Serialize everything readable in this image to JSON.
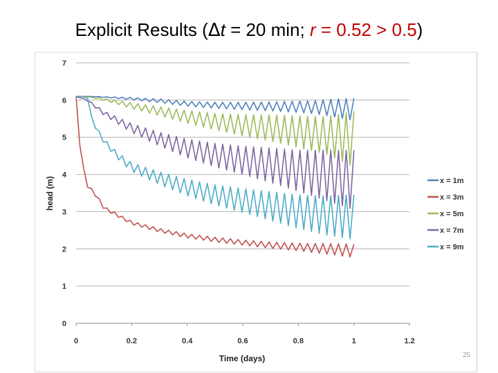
{
  "title": {
    "prefix": "Explicit Results (",
    "delta": "Δ",
    "t": "t",
    "mid": " = 20 min; ",
    "r_label": "r",
    "r_value": " = 0.52 > 0.5",
    "suffix": ")"
  },
  "slide_number": "25",
  "chart_data": {
    "type": "line",
    "title": "",
    "xlabel": "Time (days)",
    "ylabel": "head (m)",
    "xlim": [
      0,
      1.2
    ],
    "ylim": [
      0,
      7
    ],
    "x_ticks": [
      "0",
      "0.2",
      "0.4",
      "0.6",
      "0.8",
      "1",
      "1.2"
    ],
    "y_ticks": [
      "0",
      "1",
      "2",
      "3",
      "4",
      "5",
      "6",
      "7"
    ],
    "grid": "horizontal",
    "legend_position": "right",
    "time_step_days": 0.01389,
    "series": [
      {
        "name": "x = 1m",
        "color": "#4f81bd",
        "start": 6.1,
        "trend": [
          [
            0,
            6.1
          ],
          [
            0.05,
            6.1
          ],
          [
            0.1,
            6.08
          ],
          [
            0.2,
            6.04
          ],
          [
            0.3,
            5.98
          ],
          [
            0.4,
            5.9
          ],
          [
            0.5,
            5.86
          ],
          [
            0.6,
            5.84
          ],
          [
            0.7,
            5.83
          ],
          [
            0.8,
            5.82
          ],
          [
            0.9,
            5.8
          ],
          [
            1.0,
            5.75
          ]
        ],
        "amp": [
          [
            0,
            0
          ],
          [
            0.05,
            0
          ],
          [
            0.15,
            0.02
          ],
          [
            0.3,
            0.05
          ],
          [
            0.5,
            0.08
          ],
          [
            0.7,
            0.12
          ],
          [
            0.85,
            0.17
          ],
          [
            1.0,
            0.3
          ]
        ]
      },
      {
        "name": "x = 3m",
        "color": "#c0504d",
        "start": 6.1,
        "trend": [
          [
            0,
            6.1
          ],
          [
            0.01,
            5.0
          ],
          [
            0.02,
            4.4
          ],
          [
            0.04,
            3.7
          ],
          [
            0.06,
            3.55
          ],
          [
            0.08,
            3.35
          ],
          [
            0.1,
            3.1
          ],
          [
            0.15,
            2.9
          ],
          [
            0.2,
            2.7
          ],
          [
            0.3,
            2.5
          ],
          [
            0.4,
            2.35
          ],
          [
            0.5,
            2.25
          ],
          [
            0.6,
            2.17
          ],
          [
            0.7,
            2.1
          ],
          [
            0.8,
            2.05
          ],
          [
            0.9,
            2.0
          ],
          [
            1.0,
            1.95
          ]
        ],
        "amp": [
          [
            0,
            0
          ],
          [
            0.05,
            0.04
          ],
          [
            0.3,
            0.05
          ],
          [
            0.6,
            0.07
          ],
          [
            0.8,
            0.1
          ],
          [
            1.0,
            0.18
          ]
        ]
      },
      {
        "name": "x = 5m",
        "color": "#9bbb59",
        "start": 6.1,
        "trend": [
          [
            0,
            6.1
          ],
          [
            0.05,
            6.08
          ],
          [
            0.1,
            6.02
          ],
          [
            0.2,
            5.85
          ],
          [
            0.3,
            5.7
          ],
          [
            0.4,
            5.55
          ],
          [
            0.5,
            5.42
          ],
          [
            0.6,
            5.32
          ],
          [
            0.7,
            5.25
          ],
          [
            0.8,
            5.15
          ],
          [
            0.9,
            5.05
          ],
          [
            1.0,
            4.95
          ]
        ],
        "amp": [
          [
            0,
            0
          ],
          [
            0.05,
            0
          ],
          [
            0.1,
            0.03
          ],
          [
            0.3,
            0.12
          ],
          [
            0.5,
            0.22
          ],
          [
            0.7,
            0.35
          ],
          [
            0.9,
            0.5
          ],
          [
            1.0,
            0.75
          ]
        ]
      },
      {
        "name": "x = 7m",
        "color": "#8064a2",
        "start": 6.1,
        "trend": [
          [
            0,
            6.1
          ],
          [
            0.04,
            6.0
          ],
          [
            0.1,
            5.65
          ],
          [
            0.2,
            5.25
          ],
          [
            0.3,
            4.95
          ],
          [
            0.4,
            4.7
          ],
          [
            0.5,
            4.52
          ],
          [
            0.6,
            4.38
          ],
          [
            0.7,
            4.25
          ],
          [
            0.8,
            4.1
          ],
          [
            0.9,
            3.98
          ],
          [
            1.0,
            3.85
          ]
        ],
        "amp": [
          [
            0,
            0
          ],
          [
            0.04,
            0.02
          ],
          [
            0.2,
            0.12
          ],
          [
            0.4,
            0.25
          ],
          [
            0.6,
            0.38
          ],
          [
            0.8,
            0.55
          ],
          [
            1.0,
            0.8
          ]
        ]
      },
      {
        "name": "x = 9m",
        "color": "#4bacc6",
        "start": 6.1,
        "trend": [
          [
            0,
            6.1
          ],
          [
            0.04,
            6.1
          ],
          [
            0.06,
            5.4
          ],
          [
            0.1,
            4.9
          ],
          [
            0.15,
            4.5
          ],
          [
            0.2,
            4.2
          ],
          [
            0.3,
            3.9
          ],
          [
            0.4,
            3.65
          ],
          [
            0.5,
            3.45
          ],
          [
            0.6,
            3.3
          ],
          [
            0.7,
            3.15
          ],
          [
            0.8,
            3.0
          ],
          [
            0.9,
            2.9
          ],
          [
            1.0,
            2.85
          ]
        ],
        "amp": [
          [
            0,
            0
          ],
          [
            0.04,
            0
          ],
          [
            0.08,
            0.05
          ],
          [
            0.2,
            0.12
          ],
          [
            0.4,
            0.22
          ],
          [
            0.6,
            0.32
          ],
          [
            0.8,
            0.45
          ],
          [
            1.0,
            0.6
          ]
        ]
      }
    ]
  }
}
